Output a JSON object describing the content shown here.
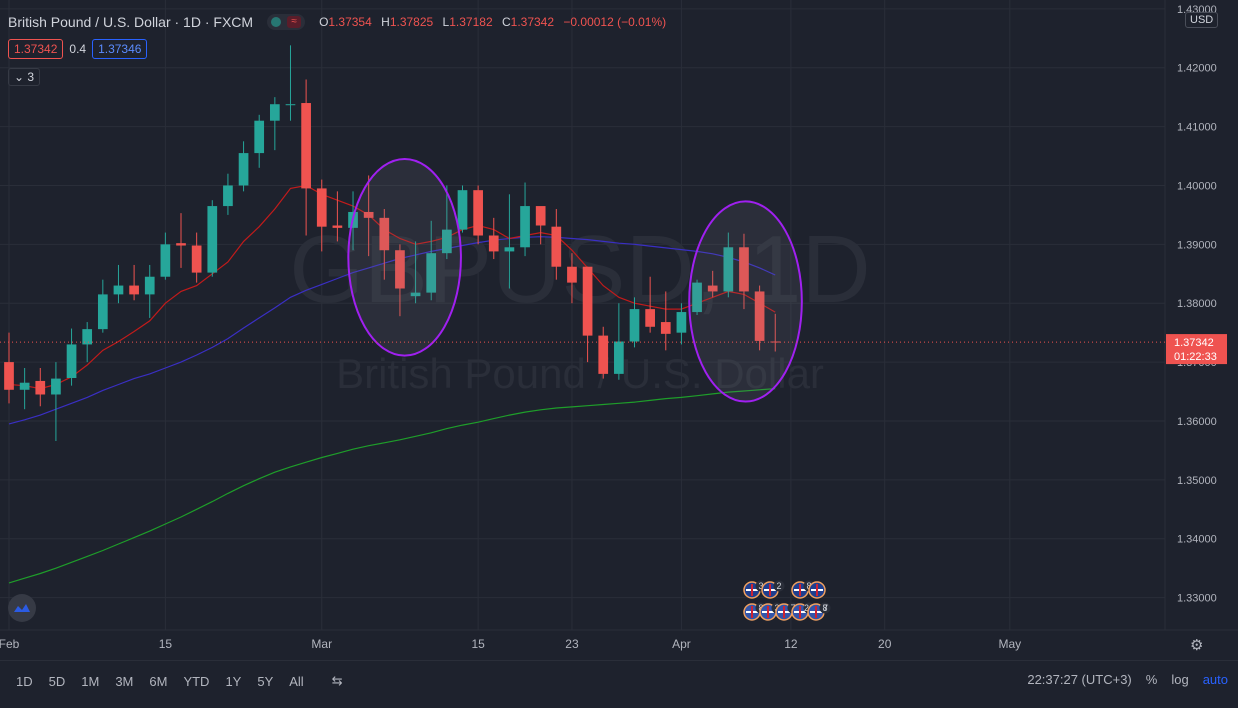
{
  "header": {
    "symbol": "British Pound / U.S. Dollar · 1D · FXCM",
    "ohlc": {
      "o_label": "O",
      "o": "1.37354",
      "h_label": "H",
      "h": "1.37825",
      "l_label": "L",
      "l": "1.37182",
      "c_label": "C",
      "c": "1.37342",
      "change": "−0.00012 (−0.01%)"
    },
    "indicator": {
      "val1": "1.37342",
      "mid": "0.4",
      "val2": "1.37346"
    },
    "collapsed_count": "3"
  },
  "watermark": {
    "symbol": "GBPUSD, 1D",
    "name": "British Pound / U.S. Dollar"
  },
  "price_axis": {
    "currency": "USD",
    "current_price": "1.37342",
    "countdown": "01:22:33"
  },
  "bottom_bar": {
    "timeframes": [
      "1D",
      "5D",
      "1M",
      "3M",
      "6M",
      "YTD",
      "1Y",
      "5Y",
      "All"
    ],
    "clock": "22:37:27 (UTC+3)",
    "pct": "%",
    "log": "log",
    "auto": "auto"
  },
  "events": {
    "row1": [
      "3",
      "2",
      "8"
    ],
    "row2": [
      "8",
      "3",
      "7",
      "21",
      "8",
      "7"
    ]
  },
  "colors": {
    "bg": "#1e222d",
    "up": "#26a69a",
    "down": "#ef5350",
    "ma_red": "#c21b1b",
    "ma_blue": "#3a2fc4",
    "ma_green": "#1e9e2a",
    "ellipse": "#a020f0"
  },
  "chart_data": {
    "type": "candlestick",
    "title": "British Pound / U.S. Dollar · 1D · FXCM",
    "ylim": [
      1.3245,
      1.4315
    ],
    "yticks": [
      1.33,
      1.34,
      1.35,
      1.36,
      1.37,
      1.38,
      1.39,
      1.4,
      1.41,
      1.42,
      1.43
    ],
    "ytick_labels": [
      "1.33000",
      "1.34000",
      "1.35000",
      "1.36000",
      "1.37000",
      "1.38000",
      "1.39000",
      "1.40000",
      "1.41000",
      "1.42000",
      "1.43000"
    ],
    "xtick_labels": [
      "Feb",
      "15",
      "Mar",
      "15",
      "23",
      "Apr",
      "12",
      "20",
      "May"
    ],
    "xtick_index": [
      0,
      10,
      20,
      30,
      36,
      43,
      50,
      56,
      64
    ],
    "x_range": [
      0,
      74.5
    ],
    "candles": [
      {
        "date": "2021-02-01",
        "o": 1.37,
        "h": 1.375,
        "l": 1.363,
        "c": 1.3653
      },
      {
        "date": "2021-02-02",
        "o": 1.3653,
        "h": 1.369,
        "l": 1.362,
        "c": 1.3665
      },
      {
        "date": "2021-02-03",
        "o": 1.3668,
        "h": 1.369,
        "l": 1.3625,
        "c": 1.3645
      },
      {
        "date": "2021-02-04",
        "o": 1.3645,
        "h": 1.37,
        "l": 1.3566,
        "c": 1.3672
      },
      {
        "date": "2021-02-05",
        "o": 1.3673,
        "h": 1.3757,
        "l": 1.366,
        "c": 1.373
      },
      {
        "date": "2021-02-08",
        "o": 1.373,
        "h": 1.3768,
        "l": 1.37,
        "c": 1.3756
      },
      {
        "date": "2021-02-09",
        "o": 1.3756,
        "h": 1.384,
        "l": 1.375,
        "c": 1.3815
      },
      {
        "date": "2021-02-10",
        "o": 1.3815,
        "h": 1.3865,
        "l": 1.38,
        "c": 1.383
      },
      {
        "date": "2021-02-11",
        "o": 1.383,
        "h": 1.3865,
        "l": 1.3805,
        "c": 1.3815
      },
      {
        "date": "2021-02-12",
        "o": 1.3815,
        "h": 1.3865,
        "l": 1.3775,
        "c": 1.3845
      },
      {
        "date": "2021-02-15",
        "o": 1.3845,
        "h": 1.392,
        "l": 1.384,
        "c": 1.39
      },
      {
        "date": "2021-02-16",
        "o": 1.3902,
        "h": 1.3953,
        "l": 1.386,
        "c": 1.3898
      },
      {
        "date": "2021-02-17",
        "o": 1.3898,
        "h": 1.392,
        "l": 1.3835,
        "c": 1.3852
      },
      {
        "date": "2021-02-18",
        "o": 1.3852,
        "h": 1.3975,
        "l": 1.3845,
        "c": 1.3965
      },
      {
        "date": "2021-02-19",
        "o": 1.3965,
        "h": 1.402,
        "l": 1.395,
        "c": 1.4
      },
      {
        "date": "2021-02-22",
        "o": 1.4,
        "h": 1.4075,
        "l": 1.399,
        "c": 1.4055
      },
      {
        "date": "2021-02-23",
        "o": 1.4055,
        "h": 1.412,
        "l": 1.403,
        "c": 1.411
      },
      {
        "date": "2021-02-24",
        "o": 1.411,
        "h": 1.415,
        "l": 1.406,
        "c": 1.4138
      },
      {
        "date": "2021-02-25",
        "o": 1.4137,
        "h": 1.4238,
        "l": 1.411,
        "c": 1.4138
      },
      {
        "date": "2021-02-26",
        "o": 1.414,
        "h": 1.418,
        "l": 1.3915,
        "c": 1.3995
      },
      {
        "date": "2021-03-01",
        "o": 1.3995,
        "h": 1.401,
        "l": 1.3888,
        "c": 1.393
      },
      {
        "date": "2021-03-02",
        "o": 1.3932,
        "h": 1.399,
        "l": 1.3905,
        "c": 1.3928
      },
      {
        "date": "2021-03-03",
        "o": 1.3928,
        "h": 1.399,
        "l": 1.389,
        "c": 1.3955
      },
      {
        "date": "2021-03-04",
        "o": 1.3955,
        "h": 1.4017,
        "l": 1.388,
        "c": 1.3945
      },
      {
        "date": "2021-03-05",
        "o": 1.3945,
        "h": 1.396,
        "l": 1.384,
        "c": 1.389
      },
      {
        "date": "2021-03-08",
        "o": 1.389,
        "h": 1.39,
        "l": 1.3778,
        "c": 1.3825
      },
      {
        "date": "2021-03-09",
        "o": 1.3812,
        "h": 1.3905,
        "l": 1.38,
        "c": 1.3818
      },
      {
        "date": "2021-03-10",
        "o": 1.3818,
        "h": 1.394,
        "l": 1.3805,
        "c": 1.3885
      },
      {
        "date": "2021-03-11",
        "o": 1.3885,
        "h": 1.4,
        "l": 1.3875,
        "c": 1.3925
      },
      {
        "date": "2021-03-12",
        "o": 1.3925,
        "h": 1.4,
        "l": 1.392,
        "c": 1.3992
      },
      {
        "date": "2021-03-15",
        "o": 1.3992,
        "h": 1.4,
        "l": 1.39,
        "c": 1.3915
      },
      {
        "date": "2021-03-16",
        "o": 1.3915,
        "h": 1.3945,
        "l": 1.3875,
        "c": 1.3888
      },
      {
        "date": "2021-03-17",
        "o": 1.3888,
        "h": 1.3985,
        "l": 1.3825,
        "c": 1.3895
      },
      {
        "date": "2021-03-18",
        "o": 1.3895,
        "h": 1.4005,
        "l": 1.388,
        "c": 1.3965
      },
      {
        "date": "2021-03-19",
        "o": 1.3965,
        "h": 1.396,
        "l": 1.39,
        "c": 1.3932
      },
      {
        "date": "2021-03-22",
        "o": 1.393,
        "h": 1.396,
        "l": 1.384,
        "c": 1.3862
      },
      {
        "date": "2021-03-23",
        "o": 1.3862,
        "h": 1.3885,
        "l": 1.38,
        "c": 1.3835
      },
      {
        "date": "2021-03-24",
        "o": 1.3862,
        "h": 1.3862,
        "l": 1.37,
        "c": 1.3745
      },
      {
        "date": "2021-03-25",
        "o": 1.3745,
        "h": 1.376,
        "l": 1.3672,
        "c": 1.368
      },
      {
        "date": "2021-03-26",
        "o": 1.368,
        "h": 1.38,
        "l": 1.367,
        "c": 1.3735
      },
      {
        "date": "2021-03-29",
        "o": 1.3735,
        "h": 1.381,
        "l": 1.3725,
        "c": 1.379
      },
      {
        "date": "2021-03-30",
        "o": 1.379,
        "h": 1.3845,
        "l": 1.375,
        "c": 1.376
      },
      {
        "date": "2021-03-31",
        "o": 1.3768,
        "h": 1.382,
        "l": 1.372,
        "c": 1.3748
      },
      {
        "date": "2021-04-01",
        "o": 1.375,
        "h": 1.38,
        "l": 1.373,
        "c": 1.3785
      },
      {
        "date": "2021-04-02",
        "o": 1.3785,
        "h": 1.384,
        "l": 1.378,
        "c": 1.3835
      },
      {
        "date": "2021-04-05",
        "o": 1.383,
        "h": 1.3855,
        "l": 1.381,
        "c": 1.382
      },
      {
        "date": "2021-04-06",
        "o": 1.382,
        "h": 1.392,
        "l": 1.381,
        "c": 1.3895
      },
      {
        "date": "2021-04-07",
        "o": 1.3895,
        "h": 1.3918,
        "l": 1.379,
        "c": 1.382
      },
      {
        "date": "2021-04-08",
        "o": 1.382,
        "h": 1.383,
        "l": 1.372,
        "c": 1.3736
      },
      {
        "date": "2021-04-09",
        "o": 1.3735,
        "h": 1.3782,
        "l": 1.3718,
        "c": 1.3734
      }
    ],
    "ma_fast": [
      1.3662,
      1.366,
      1.3655,
      1.3662,
      1.3675,
      1.3695,
      1.372,
      1.3735,
      1.3752,
      1.377,
      1.38,
      1.382,
      1.383,
      1.385,
      1.387,
      1.3905,
      1.393,
      1.396,
      1.3995,
      1.4,
      1.3985,
      1.3975,
      1.3965,
      1.395,
      1.3925,
      1.391,
      1.39,
      1.3905,
      1.3912,
      1.3925,
      1.3932,
      1.3925,
      1.391,
      1.3915,
      1.392,
      1.3915,
      1.389,
      1.386,
      1.383,
      1.381,
      1.38,
      1.3795,
      1.379,
      1.379,
      1.38,
      1.381,
      1.382,
      1.3815,
      1.38,
      1.3785
    ],
    "ma_mid": [
      1.3595,
      1.3602,
      1.361,
      1.362,
      1.363,
      1.364,
      1.3652,
      1.3662,
      1.3672,
      1.368,
      1.369,
      1.37,
      1.3712,
      1.3725,
      1.374,
      1.3758,
      1.3775,
      1.3792,
      1.381,
      1.3822,
      1.3832,
      1.3842,
      1.3852,
      1.386,
      1.3868,
      1.3876,
      1.3882,
      1.3888,
      1.3893,
      1.3898,
      1.3903,
      1.3907,
      1.391,
      1.3912,
      1.3913,
      1.3912,
      1.391,
      1.3908,
      1.3905,
      1.3902,
      1.39,
      1.3897,
      1.3894,
      1.3891,
      1.3888,
      1.3884,
      1.3878,
      1.387,
      1.386,
      1.3848
    ],
    "ma_slow": [
      1.3325,
      1.3333,
      1.3341,
      1.335,
      1.336,
      1.337,
      1.338,
      1.3391,
      1.3402,
      1.3413,
      1.3425,
      1.3437,
      1.345,
      1.3463,
      1.3477,
      1.349,
      1.3502,
      1.3513,
      1.3522,
      1.353,
      1.3538,
      1.3545,
      1.3552,
      1.3558,
      1.3563,
      1.3568,
      1.3574,
      1.358,
      1.3587,
      1.3593,
      1.3598,
      1.3604,
      1.361,
      1.3615,
      1.3619,
      1.3622,
      1.3624,
      1.3626,
      1.3628,
      1.363,
      1.3632,
      1.3635,
      1.3638,
      1.364,
      1.3643,
      1.3646,
      1.3649,
      1.3651,
      1.3653,
      1.3655
    ],
    "annotations": [
      {
        "kind": "ellipse",
        "x_center": 25.3,
        "y_center": 1.3878,
        "x_radius": 3.6,
        "y_radius": 0.0167
      },
      {
        "kind": "ellipse",
        "x_center": 47.1,
        "y_center": 1.3803,
        "x_radius": 3.6,
        "y_radius": 0.017
      }
    ]
  }
}
